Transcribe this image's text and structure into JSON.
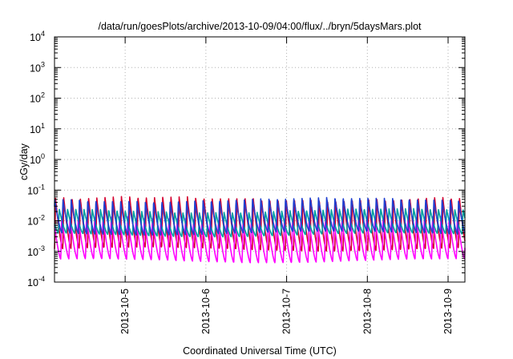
{
  "chart_data": {
    "type": "line",
    "title": "/data/run/goesPlots/archive/2013-10-09/04:00/flux/../bryn/5daysMars.plot",
    "xlabel": "Coordinated Universal Time (UTC)",
    "ylabel": "cGy/day",
    "yscale": "log",
    "ylim": [
      0.0001,
      10000
    ],
    "xlim": [
      "2013-10-04T03:00",
      "2013-10-09T05:00"
    ],
    "grid": true,
    "y_ticks": [
      {
        "base": "10",
        "exp": "-4"
      },
      {
        "base": "10",
        "exp": "-3"
      },
      {
        "base": "10",
        "exp": "-2"
      },
      {
        "base": "10",
        "exp": "-1"
      },
      {
        "base": "10",
        "exp": "0"
      },
      {
        "base": "10",
        "exp": "1"
      },
      {
        "base": "10",
        "exp": "2"
      },
      {
        "base": "10",
        "exp": "3"
      },
      {
        "base": "10",
        "exp": "4"
      }
    ],
    "x_ticks": [
      {
        "label": "2013-10-5",
        "value": "2013-10-05T00:00"
      },
      {
        "label": "2013-10-6",
        "value": "2013-10-06T00:00"
      },
      {
        "label": "2013-10-7",
        "value": "2013-10-07T00:00"
      },
      {
        "label": "2013-10-8",
        "value": "2013-10-08T00:00"
      },
      {
        "label": "2013-10-9",
        "value": "2013-10-09T00:00"
      }
    ],
    "series": [
      {
        "color": "#d4002e",
        "peak": 0.055,
        "trough": 0.0012,
        "shift": 0.0,
        "cycle_hours": 2.45
      },
      {
        "color": "#ff00ff",
        "peak": 0.012,
        "trough": 0.0005,
        "shift": 0.25,
        "cycle_hours": 2.45
      },
      {
        "color": "#00a0a0",
        "peak": 0.022,
        "trough": 0.0035,
        "shift": 0.55,
        "cycle_hours": 2.45
      },
      {
        "color": "#1f3fd0",
        "peak": 0.05,
        "trough": 0.004,
        "shift": 0.1,
        "cycle_hours": 2.45
      }
    ]
  }
}
